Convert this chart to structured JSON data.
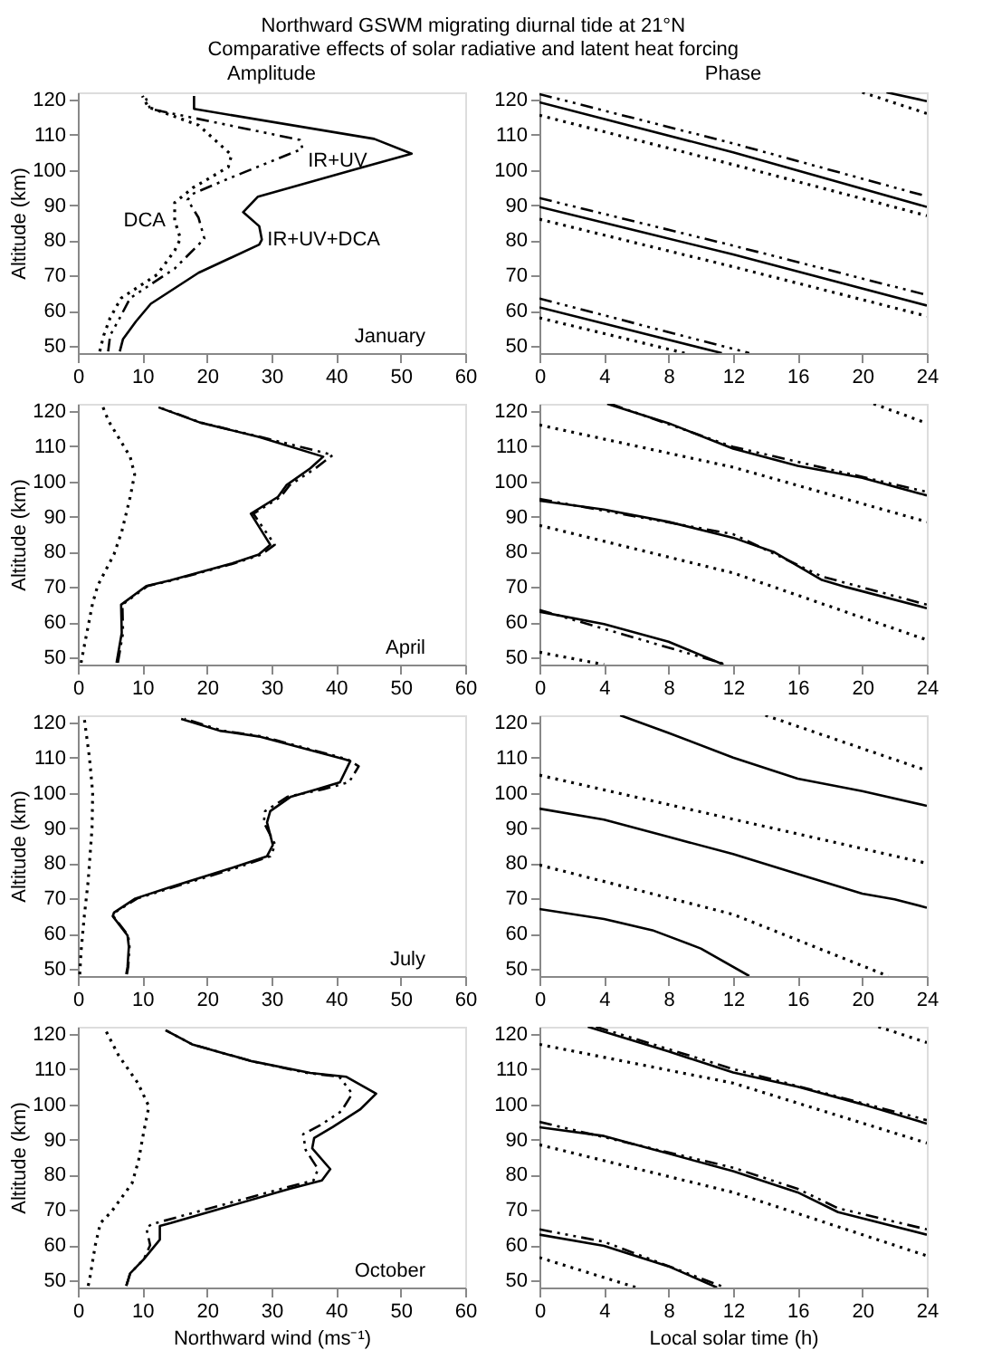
{
  "chart_data": [
    {
      "type": "line",
      "title": "Northward GSWM migrating diurnal tide at 21°N",
      "subtitle": "Comparative effects of solar radiative and latent heat forcing",
      "x2label": "Amplitude",
      "ylabel": "Altitude (km)",
      "xlim": [
        0,
        60
      ],
      "xticks": [
        0,
        10,
        20,
        30,
        40,
        50,
        60
      ],
      "ylim": [
        48,
        122
      ],
      "yticks": [
        50,
        60,
        70,
        80,
        90,
        100,
        110,
        120
      ],
      "series": [
        {
          "name": "IR+UV+DCA",
          "color": "#000000",
          "line_style": "solid",
          "x": [
            6.5,
            7,
            9,
            11.3,
            18.7,
            28.1,
            28.5,
            28.1,
            25.6,
            27.9,
            43.6,
            51.7,
            45.9,
            18,
            18
          ],
          "values": [
            48.5,
            52,
            57,
            62,
            70.8,
            78.8,
            80.2,
            84,
            88,
            92.4,
            100.5,
            104.6,
            108.8,
            117.3,
            121
          ]
        },
        {
          "name": "IR+UV",
          "color": "#000000",
          "line_style": "dashed",
          "x": [
            4.7,
            5,
            6.5,
            8.1,
            15,
            18.7,
            19.6,
            18.7,
            17,
            17.8,
            23.3,
            34.8,
            34.4,
            11.2,
            10.4
          ],
          "values": [
            48.5,
            53,
            58,
            63.6,
            72,
            78.8,
            80.5,
            86.4,
            91.5,
            93.2,
            97.5,
            106,
            108.5,
            117.3,
            121
          ]
        },
        {
          "name": "DCA",
          "color": "#000000",
          "line_style": "dotted",
          "x": [
            3.4,
            4,
            5,
            6.7,
            12.3,
            15,
            15.9,
            15,
            15,
            17.8,
            23.3,
            23.8,
            18.7,
            10.9,
            10
          ],
          "values": [
            48.5,
            53,
            58,
            63.6,
            70.3,
            77.1,
            80.5,
            85.6,
            90.7,
            94.9,
            100.8,
            104.2,
            112.7,
            117.8,
            121
          ]
        }
      ],
      "annotations": [
        "January"
      ]
    },
    {
      "type": "line",
      "x2label": "Phase",
      "xlim": [
        0,
        24
      ],
      "xticks": [
        0,
        4,
        8,
        12,
        16,
        20,
        24
      ],
      "ylim": [
        48,
        122
      ],
      "yticks": [
        50,
        60,
        70,
        80,
        90,
        100,
        110,
        120
      ],
      "series": [
        {
          "color": "#000000",
          "line_style": "solid",
          "x": [
            0,
            12,
            24
          ],
          "values": [
            119.2,
            105,
            89.5
          ]
        },
        {
          "color": "#000000",
          "line_style": "solid",
          "x": [
            0,
            12,
            24
          ],
          "values": [
            89.5,
            76,
            61.5
          ]
        },
        {
          "color": "#000000",
          "line_style": "solid",
          "x": [
            0,
            11.3
          ],
          "values": [
            61,
            48
          ]
        },
        {
          "color": "#000000",
          "line_style": "solid",
          "x": [
            21.5,
            24
          ],
          "values": [
            122,
            119.5
          ]
        },
        {
          "color": "#000000",
          "line_style": "dashed",
          "x": [
            0,
            12,
            24
          ],
          "values": [
            121.5,
            107.5,
            92.5
          ]
        },
        {
          "color": "#000000",
          "line_style": "dashed",
          "x": [
            0,
            12,
            24
          ],
          "values": [
            92,
            78.5,
            64.5
          ]
        },
        {
          "color": "#000000",
          "line_style": "dashed",
          "x": [
            0,
            13
          ],
          "values": [
            63.5,
            48
          ]
        },
        {
          "color": "#000000",
          "line_style": "dotted",
          "x": [
            0,
            12,
            24
          ],
          "values": [
            115.5,
            101.5,
            87
          ]
        },
        {
          "color": "#000000",
          "line_style": "dotted",
          "x": [
            0,
            12,
            24
          ],
          "values": [
            86,
            72.5,
            58.5
          ]
        },
        {
          "color": "#000000",
          "line_style": "dotted",
          "x": [
            0,
            9
          ],
          "values": [
            58,
            48
          ]
        },
        {
          "color": "#000000",
          "line_style": "dotted",
          "x": [
            20,
            24
          ],
          "values": [
            122,
            116
          ]
        }
      ]
    },
    {
      "type": "line",
      "ylabel": "Altitude (km)",
      "xlim": [
        0,
        60
      ],
      "xticks": [
        0,
        10,
        20,
        30,
        40,
        50,
        60
      ],
      "ylim": [
        48,
        122
      ],
      "yticks": [
        50,
        60,
        70,
        80,
        90,
        100,
        110,
        120
      ],
      "series": [
        {
          "color": "#000000",
          "line_style": "solid",
          "x": [
            6,
            6.8,
            6.7,
            10.6,
            14.3,
            23.9,
            28,
            29.8,
            26.8,
            31,
            32.3,
            36,
            38,
            28,
            18.9,
            12.5
          ],
          "values": [
            48.5,
            57,
            65,
            70.3,
            71.9,
            76.7,
            79.2,
            82,
            90.8,
            95.6,
            98.9,
            103.7,
            107,
            112.6,
            116.7,
            121
          ]
        },
        {
          "color": "#000000",
          "line_style": "dashed",
          "x": [
            6.2,
            7,
            6.9,
            10.8,
            14.6,
            24.2,
            28.4,
            30.5,
            27.2,
            31.4,
            32.8,
            36.8,
            39.5,
            28.3,
            19,
            12.6
          ],
          "values": [
            48.5,
            57,
            65,
            70.3,
            71.9,
            76.7,
            79.2,
            82,
            90.8,
            95.6,
            98.9,
            103.7,
            107.5,
            112.6,
            116.7,
            121
          ]
        },
        {
          "color": "#000000",
          "line_style": "dotted",
          "x": [
            0.5,
            1,
            2.3,
            3.1,
            5.6,
            6.8,
            8.1,
            8.8,
            8.1,
            4.8,
            3.9
          ],
          "values": [
            48.5,
            53.3,
            65.5,
            70.5,
            79.3,
            85.7,
            95.5,
            102,
            107,
            117,
            121
          ]
        }
      ],
      "annotations": [
        "April"
      ]
    },
    {
      "type": "line",
      "xlim": [
        0,
        24
      ],
      "xticks": [
        0,
        4,
        8,
        12,
        16,
        20,
        24
      ],
      "ylim": [
        48,
        122
      ],
      "yticks": [
        50,
        60,
        70,
        80,
        90,
        100,
        110,
        120
      ],
      "series": [
        {
          "color": "#000000",
          "line_style": "solid",
          "x": [
            4.2,
            8,
            12,
            16,
            20,
            24
          ],
          "values": [
            122,
            116.5,
            109.3,
            104.4,
            101,
            96
          ]
        },
        {
          "color": "#000000",
          "line_style": "solid",
          "x": [
            0,
            4,
            8,
            12,
            14.5,
            17.5,
            19,
            24
          ],
          "values": [
            94.5,
            92,
            88.5,
            84,
            80,
            72,
            70,
            64
          ]
        },
        {
          "color": "#000000",
          "line_style": "solid",
          "x": [
            0,
            4,
            8,
            11.4
          ],
          "values": [
            63,
            59.5,
            54.5,
            48
          ]
        },
        {
          "color": "#000000",
          "line_style": "dashed",
          "x": [
            4.4,
            12,
            24
          ],
          "values": [
            122,
            109.8,
            97
          ]
        },
        {
          "color": "#000000",
          "line_style": "dashed",
          "x": [
            0,
            12,
            17.5,
            24
          ],
          "values": [
            95,
            85,
            73,
            65
          ]
        },
        {
          "color": "#000000",
          "line_style": "dashed",
          "x": [
            0,
            11.6
          ],
          "values": [
            63.5,
            48
          ]
        },
        {
          "color": "#000000",
          "line_style": "dotted",
          "x": [
            0,
            12,
            24
          ],
          "values": [
            116,
            104,
            88.5
          ]
        },
        {
          "color": "#000000",
          "line_style": "dotted",
          "x": [
            0,
            12,
            24
          ],
          "values": [
            87.5,
            74,
            55
          ]
        },
        {
          "color": "#000000",
          "line_style": "dotted",
          "x": [
            0,
            4
          ],
          "values": [
            51.5,
            48
          ]
        },
        {
          "color": "#000000",
          "line_style": "dotted",
          "x": [
            20.7,
            24
          ],
          "values": [
            122,
            116.5
          ]
        }
      ]
    },
    {
      "type": "line",
      "ylabel": "Altitude (km)",
      "xlim": [
        0,
        60
      ],
      "xticks": [
        0,
        10,
        20,
        30,
        40,
        50,
        60
      ],
      "ylim": [
        48,
        122
      ],
      "yticks": [
        50,
        60,
        70,
        80,
        90,
        100,
        110,
        120
      ],
      "series": [
        {
          "color": "#000000",
          "line_style": "solid",
          "x": [
            7.5,
            7.7,
            7.9,
            7.7,
            5.4,
            5.6,
            8.9,
            13.9,
            23.9,
            29.3,
            30.2,
            29.3,
            29.8,
            33,
            37,
            40.6,
            42.2,
            41.4,
            28,
            22,
            16
          ],
          "values": [
            48.5,
            50.6,
            56.3,
            59.5,
            65,
            66,
            70,
            73,
            78.7,
            82,
            85.2,
            91.6,
            94.8,
            98.9,
            101,
            103,
            109,
            109.5,
            116,
            117.6,
            121
          ]
        },
        {
          "color": "#000000",
          "line_style": "dashed",
          "x": [
            7.6,
            7.8,
            8,
            7.8,
            5.5,
            5.7,
            9.2,
            14.4,
            24.6,
            29.8,
            30.6,
            28.8,
            29,
            32.5,
            38,
            42,
            43.5,
            41.8,
            28.5,
            22.5,
            16.5
          ],
          "values": [
            48.5,
            50.6,
            56.3,
            59.5,
            65,
            66,
            70,
            73,
            78.7,
            82,
            85.2,
            91.6,
            94.8,
            98.9,
            101,
            103,
            107.5,
            109.5,
            116,
            117.6,
            121
          ]
        },
        {
          "color": "#000000",
          "line_style": "dotted",
          "x": [
            0.3,
            0.5,
            1,
            1.6,
            2.2,
            2.3,
            1.8,
            1
          ],
          "values": [
            48.5,
            55,
            65,
            75,
            90,
            100,
            110,
            121
          ]
        }
      ],
      "annotations": [
        "July"
      ]
    },
    {
      "type": "line",
      "xlim": [
        0,
        24
      ],
      "xticks": [
        0,
        4,
        8,
        12,
        16,
        20,
        24
      ],
      "ylim": [
        48,
        122
      ],
      "yticks": [
        50,
        60,
        70,
        80,
        90,
        100,
        110,
        120
      ],
      "series": [
        {
          "color": "#000000",
          "line_style": "solid",
          "x": [
            5,
            8,
            12,
            16,
            20,
            24
          ],
          "values": [
            122,
            117,
            110,
            104,
            100.5,
            96.3
          ]
        },
        {
          "color": "#000000",
          "line_style": "solid",
          "x": [
            0,
            4,
            8,
            12,
            16,
            20,
            22,
            24
          ],
          "values": [
            95.5,
            92.4,
            87.5,
            82.6,
            77,
            71.4,
            69.8,
            67.4
          ]
        },
        {
          "color": "#000000",
          "line_style": "solid",
          "x": [
            0,
            4,
            7,
            10,
            13
          ],
          "values": [
            67,
            64.2,
            61,
            55.8,
            48
          ]
        },
        {
          "color": "#000000",
          "line_style": "dotted",
          "x": [
            14,
            24
          ],
          "values": [
            122,
            106.3
          ]
        },
        {
          "color": "#000000",
          "line_style": "dotted",
          "x": [
            0,
            12,
            24
          ],
          "values": [
            105,
            92.5,
            80
          ]
        },
        {
          "color": "#000000",
          "line_style": "dotted",
          "x": [
            0,
            12,
            21.6
          ],
          "values": [
            79.5,
            65.5,
            48
          ]
        }
      ]
    },
    {
      "type": "line",
      "ylabel": "Altitude (km)",
      "xlabel": "Northward wind (ms⁻¹)",
      "xlim": [
        0,
        60
      ],
      "xticks": [
        0,
        10,
        20,
        30,
        40,
        50,
        60
      ],
      "ylim": [
        48,
        122
      ],
      "yticks": [
        50,
        60,
        70,
        80,
        90,
        100,
        110,
        120
      ],
      "series": [
        {
          "color": "#000000",
          "line_style": "solid",
          "x": [
            7.5,
            7.7,
            8.1,
            10.2,
            12.7,
            12.7,
            14.4,
            32.8,
            37.8,
            39.1,
            36.3,
            36.6,
            39.5,
            43.7,
            46.2,
            41.6,
            36,
            27,
            17.7,
            13.6
          ],
          "values": [
            48.5,
            49.6,
            52,
            56,
            61.6,
            65.5,
            66.3,
            76,
            78.4,
            81.6,
            87.5,
            90.4,
            93.6,
            98.5,
            103,
            107.8,
            108.9,
            112.2,
            117,
            121
          ]
        },
        {
          "color": "#000000",
          "line_style": "dashed",
          "x": [
            7.5,
            7.7,
            8.1,
            10.2,
            11.2,
            10.6,
            11.5,
            31.5,
            36.5,
            37.2,
            35.3,
            34.9,
            37.5,
            40.8,
            42.5,
            40.5,
            35.5,
            27,
            17.7,
            13.6
          ],
          "values": [
            48.5,
            49.6,
            52,
            56,
            60,
            65,
            66,
            76,
            78.4,
            81.6,
            87,
            91.5,
            94,
            98,
            103,
            107.8,
            108.9,
            112.2,
            117,
            121
          ]
        },
        {
          "color": "#000000",
          "line_style": "dotted",
          "x": [
            1.6,
            1.8,
            2.7,
            3.5,
            5.2,
            8.4,
            9.4,
            10.2,
            11,
            9.3,
            6.3,
            4.3
          ],
          "values": [
            48.5,
            50,
            60,
            66.3,
            69.5,
            77.6,
            84,
            92.1,
            99.4,
            106,
            113.9,
            121
          ]
        }
      ],
      "annotations": [
        "October"
      ]
    },
    {
      "type": "line",
      "xlabel": "Local solar time (h)",
      "xlim": [
        0,
        24
      ],
      "xticks": [
        0,
        4,
        8,
        12,
        16,
        20,
        24
      ],
      "ylim": [
        48,
        122
      ],
      "yticks": [
        50,
        60,
        70,
        80,
        90,
        100,
        110,
        120
      ],
      "series": [
        {
          "color": "#000000",
          "line_style": "solid",
          "x": [
            3,
            8,
            12,
            16,
            20,
            24
          ],
          "values": [
            122,
            115,
            109,
            105,
            100,
            94.5
          ]
        },
        {
          "color": "#000000",
          "line_style": "solid",
          "x": [
            0,
            4,
            8,
            12,
            16,
            18.5,
            24
          ],
          "values": [
            93.5,
            91,
            86,
            81,
            75,
            69.4,
            63
          ]
        },
        {
          "color": "#000000",
          "line_style": "solid",
          "x": [
            0,
            4,
            8,
            11
          ],
          "values": [
            63,
            59.8,
            54,
            48
          ]
        },
        {
          "color": "#000000",
          "line_style": "dashed",
          "x": [
            3.5,
            12,
            24
          ],
          "values": [
            122,
            110,
            95.5
          ]
        },
        {
          "color": "#000000",
          "line_style": "dashed",
          "x": [
            0,
            12,
            16,
            18.5,
            24
          ],
          "values": [
            95,
            82,
            76,
            70.5,
            64.5
          ]
        },
        {
          "color": "#000000",
          "line_style": "dashed",
          "x": [
            0,
            4,
            11.5
          ],
          "values": [
            64.5,
            61,
            48
          ]
        },
        {
          "color": "#000000",
          "line_style": "dotted",
          "x": [
            0,
            12,
            24
          ],
          "values": [
            117,
            106,
            89
          ]
        },
        {
          "color": "#000000",
          "line_style": "dotted",
          "x": [
            0,
            12,
            24
          ],
          "values": [
            88.5,
            75,
            57
          ]
        },
        {
          "color": "#000000",
          "line_style": "dotted",
          "x": [
            0,
            6
          ],
          "values": [
            56.5,
            48
          ]
        },
        {
          "color": "#000000",
          "line_style": "dotted",
          "x": [
            21,
            24
          ],
          "values": [
            122,
            117.5
          ]
        }
      ]
    }
  ]
}
